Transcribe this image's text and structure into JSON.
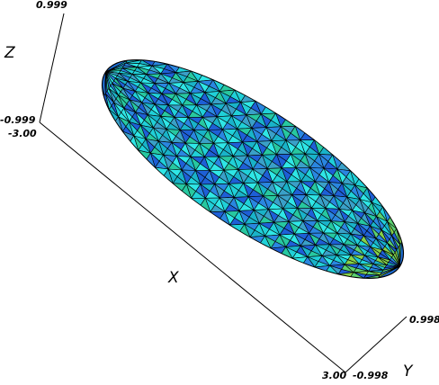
{
  "axes": {
    "x": {
      "name": "X",
      "min_label": "-3.00",
      "max_label": "3.00"
    },
    "y": {
      "name": "Y",
      "min_label": "-0.998",
      "max_label": "0.998"
    },
    "z": {
      "name": "Z",
      "min_label": "-0.999",
      "max_label": "0.999"
    }
  },
  "surface": {
    "shape": "ellipsoid",
    "semi_axes": {
      "x": 3.0,
      "y": 0.998,
      "z": 0.999
    },
    "mesh": "triangular",
    "colors": [
      "#1e5fd6",
      "#2a86e0",
      "#19b3c9",
      "#20d0d8",
      "#2fe6e6",
      "#3aa0c8",
      "#27c8a0",
      "#5cd070",
      "#86d24a"
    ],
    "edge_color": "#000000"
  }
}
